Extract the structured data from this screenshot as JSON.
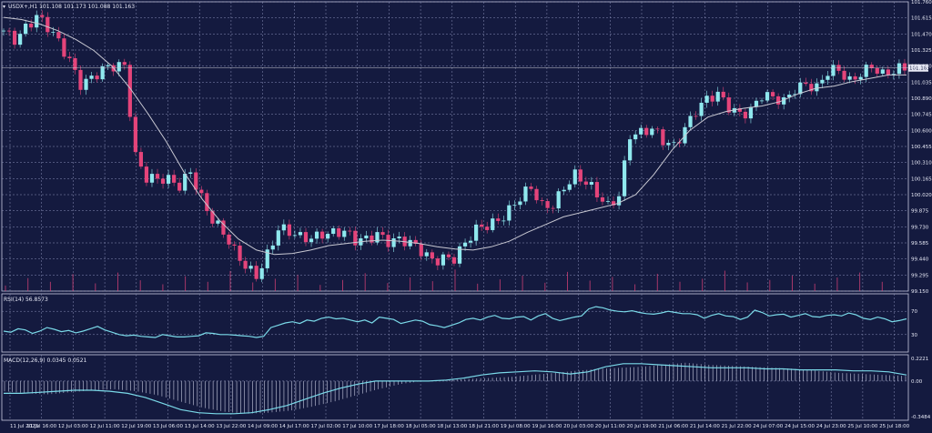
{
  "header": {
    "symbol_line": "USDX+,H1  101.108 101.173 101.088 101.163"
  },
  "colors": {
    "background": "#141a3f",
    "grid": "#8a90b8",
    "bull": "#8fe8ee",
    "bear": "#e4447a",
    "ma": "#c8c8d2",
    "rsi": "#7ad9e8",
    "macd": "#7ad9e8",
    "histogram": "#c8cbe0",
    "volume": "#e4447a"
  },
  "chart_data": [
    {
      "type": "candlestick",
      "title": "USDX+,H1",
      "ohlc_readout": {
        "open": 101.108,
        "high": 101.173,
        "low": 101.088,
        "close": 101.163
      },
      "last_price_label": "101.163",
      "last_price": 101.163,
      "ylim": [
        99.15,
        101.76
      ],
      "y_ticks": [
        "101.760",
        "101.615",
        "101.470",
        "101.325",
        "101.180",
        "101.035",
        "100.890",
        "100.745",
        "100.600",
        "100.455",
        "100.310",
        "100.165",
        "100.020",
        "99.875",
        "99.730",
        "99.585",
        "99.440",
        "99.295",
        "99.150"
      ],
      "x_ticks": [
        "11 Jul 2023",
        "11 Jul 16:00",
        "12 Jul 03:00",
        "12 Jul 11:00",
        "12 Jul 19:00",
        "13 Jul 06:00",
        "13 Jul 14:00",
        "13 Jul 22:00",
        "14 Jul 09:00",
        "14 Jul 17:00",
        "17 Jul 02:00",
        "17 Jul 10:00",
        "17 Jul 18:00",
        "18 Jul 05:00",
        "18 Jul 13:00",
        "18 Jul 21:00",
        "19 Jul 08:00",
        "19 Jul 16:00",
        "20 Jul 03:00",
        "20 Jul 11:00",
        "20 Jul 19:00",
        "21 Jul 06:00",
        "21 Jul 14:00",
        "21 Jul 22:00",
        "24 Jul 07:00",
        "24 Jul 15:00",
        "24 Jul 23:00",
        "25 Jul 10:00",
        "25 Jul 18:00"
      ],
      "close_path": [
        101.5,
        101.45,
        101.55,
        101.62,
        101.5,
        101.38,
        101.25,
        101.05,
        101.08,
        101.12,
        101.15,
        101.18,
        100.4,
        100.2,
        100.15,
        100.12,
        100.08,
        100.25,
        100.02,
        99.8,
        99.65,
        99.48,
        99.38,
        99.32,
        99.5,
        99.7,
        99.65,
        99.62,
        99.65,
        99.7,
        99.68,
        99.66,
        99.58,
        99.62,
        99.7,
        99.62,
        99.6,
        99.55,
        99.5,
        99.45,
        99.48,
        99.45,
        99.55,
        99.68,
        99.75,
        99.82,
        99.9,
        99.98,
        100.05,
        99.9,
        99.95,
        100.12,
        100.2,
        100.1,
        100.0,
        99.92,
        100.05,
        100.58,
        100.56,
        100.58,
        100.5,
        100.48,
        100.65,
        100.78,
        100.85,
        100.9,
        100.82,
        100.78,
        100.8,
        100.9,
        100.86,
        100.85,
        101.0,
        101.05,
        100.98,
        101.1,
        101.12,
        101.05,
        101.15,
        101.2,
        101.08,
        101.1,
        101.16
      ],
      "moving_average_path": [
        101.62,
        101.6,
        101.56,
        101.5,
        101.42,
        101.32,
        101.18,
        100.98,
        100.75,
        100.5,
        100.22,
        99.98,
        99.78,
        99.62,
        99.52,
        99.48,
        99.49,
        99.52,
        99.56,
        99.58,
        99.6,
        99.61,
        99.6,
        99.58,
        99.55,
        99.53,
        99.52,
        99.55,
        99.6,
        99.68,
        99.75,
        99.82,
        99.86,
        99.9,
        99.94,
        100.02,
        100.2,
        100.42,
        100.6,
        100.72,
        100.77,
        100.8,
        100.82,
        100.86,
        100.93,
        100.98,
        101.0,
        101.04,
        101.07,
        101.1,
        101.1
      ],
      "volume_levels": [
        0.18,
        0.42,
        0.3,
        0.55,
        0.25,
        0.6,
        0.35,
        0.22,
        0.48,
        0.3,
        0.65,
        0.28,
        0.4,
        0.52,
        0.2,
        0.36,
        0.58,
        0.26,
        0.44,
        0.32,
        0.7,
        0.24,
        0.38,
        0.5,
        0.27,
        0.62,
        0.34,
        0.46,
        0.22,
        0.56,
        0.3,
        0.4,
        0.66,
        0.28,
        0.36,
        0.5,
        0.24,
        0.44,
        0.6,
        0.3
      ]
    },
    {
      "type": "line",
      "title": "RSI(14) 56.8573",
      "ylim": [
        0,
        100
      ],
      "y_ticks": [
        "70",
        "30"
      ],
      "levels": [
        70,
        30
      ],
      "values": [
        36,
        34,
        40,
        38,
        32,
        36,
        42,
        39,
        35,
        37,
        33,
        36,
        40,
        44,
        38,
        34,
        30,
        28,
        29,
        27,
        26,
        25,
        30,
        28,
        26,
        26,
        27,
        28,
        33,
        32,
        30,
        30,
        29,
        28,
        27,
        25,
        27,
        42,
        46,
        50,
        52,
        49,
        55,
        53,
        58,
        60,
        57,
        58,
        55,
        52,
        55,
        50,
        60,
        58,
        56,
        49,
        52,
        55,
        53,
        47,
        45,
        42,
        46,
        50,
        56,
        58,
        55,
        60,
        63,
        58,
        57,
        60,
        61,
        55,
        62,
        66,
        58,
        54,
        57,
        60,
        62,
        74,
        78,
        76,
        72,
        70,
        69,
        71,
        68,
        66,
        65,
        67,
        70,
        68,
        66,
        66,
        64,
        58,
        63,
        66,
        62,
        61,
        56,
        60,
        72,
        68,
        62,
        64,
        65,
        60,
        63,
        66,
        61,
        60,
        63,
        64,
        62,
        67,
        64,
        58,
        56,
        60,
        57,
        52,
        54,
        57
      ]
    },
    {
      "type": "line",
      "title": "MACD(12,26,9) 0.0345 0.0521",
      "ylim": [
        -0.3484,
        0.2221
      ],
      "y_ticks": [
        "0.2221",
        "0.00",
        "-0.3484"
      ],
      "macd_line": [
        -0.12,
        -0.12,
        -0.11,
        -0.1,
        -0.09,
        -0.09,
        -0.1,
        -0.12,
        -0.16,
        -0.22,
        -0.28,
        -0.31,
        -0.32,
        -0.32,
        -0.31,
        -0.28,
        -0.24,
        -0.18,
        -0.12,
        -0.07,
        -0.03,
        0.0,
        0.0,
        0.0,
        0.0,
        0.01,
        0.03,
        0.06,
        0.08,
        0.09,
        0.1,
        0.09,
        0.07,
        0.09,
        0.14,
        0.17,
        0.17,
        0.16,
        0.15,
        0.14,
        0.13,
        0.13,
        0.13,
        0.12,
        0.12,
        0.11,
        0.11,
        0.11,
        0.1,
        0.1,
        0.09,
        0.06
      ],
      "histogram": [
        -0.1,
        -0.12,
        -0.13,
        -0.11,
        -0.09,
        -0.08,
        -0.1,
        -0.14,
        -0.2,
        -0.26,
        -0.3,
        -0.32,
        -0.31,
        -0.29,
        -0.25,
        -0.2,
        -0.14,
        -0.08,
        -0.03,
        0.0,
        0.01,
        0.02,
        0.03,
        0.04,
        0.06,
        0.08,
        0.1,
        0.12,
        0.13,
        0.14,
        0.16,
        0.18,
        0.16,
        0.15,
        0.14,
        0.13,
        0.12,
        0.1,
        0.08,
        0.07,
        0.06,
        0.05
      ]
    }
  ]
}
